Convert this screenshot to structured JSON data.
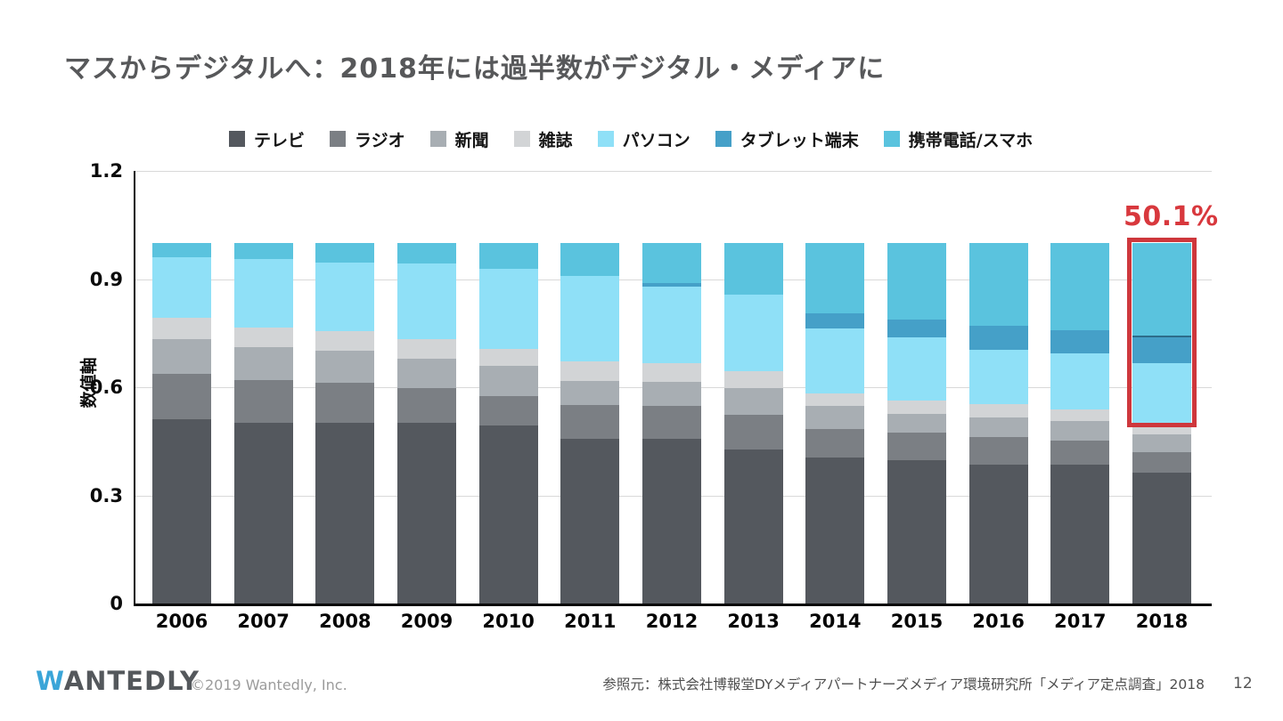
{
  "chart_data": {
    "type": "bar",
    "stacked": true,
    "title": "マスからデジタルへ：2018年には過半数がデジタル・メディアに",
    "categories": [
      "2006",
      "2007",
      "2008",
      "2009",
      "2010",
      "2011",
      "2012",
      "2013",
      "2014",
      "2015",
      "2016",
      "2017",
      "2018"
    ],
    "ylabel": "数値軸",
    "yticks": [
      "0",
      "0.3",
      "0.6",
      "0.9",
      "1.2"
    ],
    "ylim": [
      0,
      1.2
    ],
    "grid": true,
    "legend_position": "top",
    "series": [
      {
        "name": "テレビ",
        "color": "#54585e",
        "values": [
          0.51,
          0.5,
          0.5,
          0.5,
          0.494,
          0.457,
          0.456,
          0.426,
          0.405,
          0.397,
          0.386,
          0.386,
          0.362
        ]
      },
      {
        "name": "ラジオ",
        "color": "#7b7f84",
        "values": [
          0.128,
          0.12,
          0.113,
          0.098,
          0.082,
          0.094,
          0.092,
          0.098,
          0.078,
          0.078,
          0.076,
          0.066,
          0.057
        ]
      },
      {
        "name": "新聞",
        "color": "#a8aeb3",
        "values": [
          0.096,
          0.09,
          0.089,
          0.08,
          0.084,
          0.067,
          0.066,
          0.073,
          0.066,
          0.051,
          0.054,
          0.053,
          0.05
        ]
      },
      {
        "name": "雑誌",
        "color": "#d2d4d6",
        "values": [
          0.059,
          0.056,
          0.053,
          0.056,
          0.045,
          0.054,
          0.052,
          0.047,
          0.034,
          0.037,
          0.037,
          0.033,
          0.03
        ]
      },
      {
        "name": "パソコン",
        "color": "#8fe0f7",
        "values": [
          0.167,
          0.189,
          0.19,
          0.209,
          0.224,
          0.236,
          0.214,
          0.213,
          0.179,
          0.176,
          0.151,
          0.157,
          0.167
        ]
      },
      {
        "name": "タブレット端末",
        "color": "#45a0c8",
        "values": [
          0.0,
          0.0,
          0.0,
          0.0,
          0.0,
          0.0,
          0.008,
          0.0,
          0.044,
          0.049,
          0.066,
          0.063,
          0.077
        ]
      },
      {
        "name": "携帯電話/スマホ",
        "color": "#5ac3de",
        "values": [
          0.04,
          0.045,
          0.055,
          0.057,
          0.071,
          0.092,
          0.112,
          0.143,
          0.194,
          0.212,
          0.23,
          0.242,
          0.257
        ]
      }
    ],
    "annotation": {
      "label": "50.1%",
      "label_color": "#d8383d",
      "box_color": "#ce373c",
      "target_category": "2018",
      "covers_series": [
        "パソコン",
        "タブレット端末",
        "携帯電話/スマホ"
      ],
      "covered_total": 0.501
    }
  },
  "footer": {
    "logo_w": "W",
    "logo_rest": "ANTEDLY",
    "copyright": "©2019 Wantedly, Inc.",
    "source": "参照元：株式会社博報堂DYメディアパートナーズメディア環境研究所「メディア定点調査」2018",
    "page_number": "12"
  }
}
